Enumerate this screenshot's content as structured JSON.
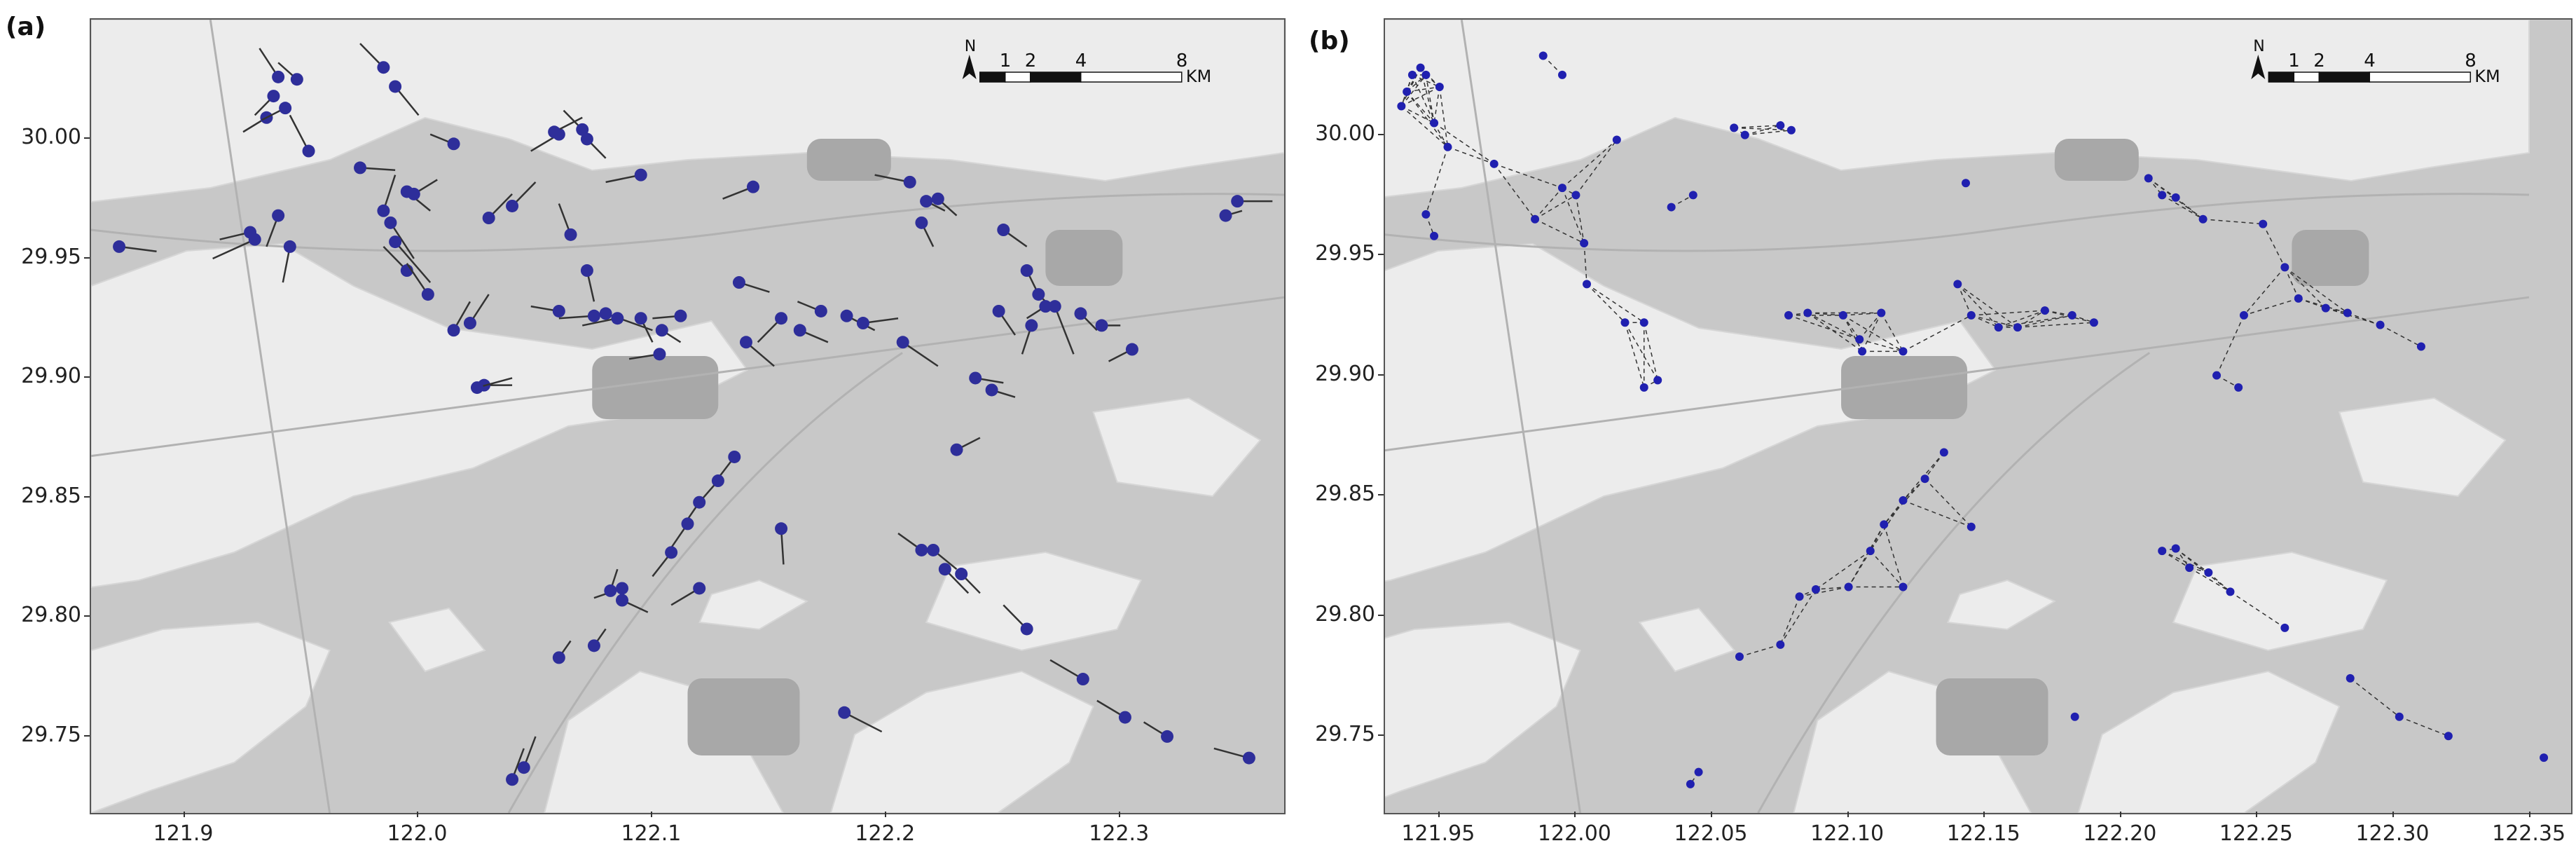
{
  "panels": [
    {
      "letter": "(a)",
      "x_ticks": [
        "121.9",
        "122.0",
        "122.1",
        "122.2",
        "122.3"
      ],
      "y_ticks": [
        "30.00",
        "29.95",
        "29.90",
        "29.85",
        "29.80",
        "29.75"
      ],
      "lon_range": [
        121.86,
        122.37
      ],
      "lat_range": [
        29.718,
        30.05
      ],
      "x_tick_values": [
        121.9,
        122.0,
        122.1,
        122.2,
        122.3
      ],
      "y_tick_values": [
        30.0,
        29.95,
        29.9,
        29.85,
        29.8,
        29.75
      ],
      "scalebar": {
        "north": "N",
        "labels": [
          "1",
          "2",
          "4",
          "8"
        ],
        "unit": "KM"
      }
    },
    {
      "letter": "(b)",
      "x_ticks": [
        "121.95",
        "122.00",
        "122.05",
        "122.10",
        "122.15",
        "122.20",
        "122.25",
        "122.30",
        "122.35"
      ],
      "y_ticks": [
        "30.00",
        "29.95",
        "29.90",
        "29.85",
        "29.80",
        "29.75"
      ],
      "lon_range": [
        121.93,
        122.365
      ],
      "lat_range": [
        29.718,
        30.048
      ],
      "x_tick_values": [
        121.95,
        122.0,
        122.05,
        122.1,
        122.15,
        122.2,
        122.25,
        122.3,
        122.35
      ],
      "y_tick_values": [
        30.0,
        29.95,
        29.9,
        29.85,
        29.8,
        29.75
      ],
      "scalebar": {
        "north": "N",
        "labels": [
          "1",
          "2",
          "4",
          "8"
        ],
        "unit": "KM"
      }
    }
  ],
  "colors": {
    "water": "#c8c8c8",
    "land": "#ececec",
    "urban": "#a8a8a8",
    "ship_point": "#2e2e9a",
    "track": "#333333"
  },
  "chart_data": [
    {
      "type": "scatter",
      "title": "(a)",
      "xlabel": "",
      "ylabel": "",
      "xlim": [
        121.86,
        122.37
      ],
      "ylim": [
        29.718,
        30.05
      ],
      "points": [
        [
          121.872,
          29.955,
          121.888,
          29.953
        ],
        [
          121.928,
          29.961,
          121.915,
          29.958
        ],
        [
          121.93,
          29.958,
          121.912,
          29.95
        ],
        [
          121.94,
          29.968,
          121.935,
          29.955
        ],
        [
          121.945,
          29.955,
          121.942,
          29.94
        ],
        [
          121.94,
          30.026,
          121.932,
          30.038
        ],
        [
          121.948,
          30.025,
          121.94,
          30.032
        ],
        [
          121.938,
          30.018,
          121.93,
          30.01
        ],
        [
          121.935,
          30.009,
          121.925,
          30.003
        ],
        [
          121.943,
          30.013,
          121.933,
          30.008
        ],
        [
          121.953,
          29.995,
          121.945,
          30.01
        ],
        [
          121.975,
          29.988,
          121.99,
          29.987
        ],
        [
          121.988,
          29.965,
          121.998,
          29.95
        ],
        [
          121.985,
          29.97,
          121.99,
          29.985
        ],
        [
          121.995,
          29.978,
          122.005,
          29.97
        ],
        [
          121.998,
          29.977,
          122.008,
          29.983
        ],
        [
          121.99,
          29.957,
          122.005,
          29.94
        ],
        [
          121.995,
          29.945,
          121.985,
          29.955
        ],
        [
          122.004,
          29.935,
          121.995,
          29.948
        ],
        [
          121.985,
          30.03,
          121.975,
          30.04
        ],
        [
          121.99,
          30.022,
          122.0,
          30.01
        ],
        [
          122.015,
          29.998,
          122.005,
          30.002
        ],
        [
          122.015,
          29.92,
          122.022,
          29.932
        ],
        [
          122.022,
          29.923,
          122.03,
          29.935
        ],
        [
          122.028,
          29.897,
          122.04,
          29.897
        ],
        [
          122.025,
          29.896,
          122.04,
          29.9
        ],
        [
          122.03,
          29.967,
          122.04,
          29.977
        ],
        [
          122.04,
          29.972,
          122.05,
          29.982
        ],
        [
          122.06,
          30.002,
          122.048,
          29.995
        ],
        [
          122.058,
          30.003,
          122.07,
          30.009
        ],
        [
          122.07,
          30.004,
          122.062,
          30.012
        ],
        [
          122.072,
          30.0,
          122.08,
          29.992
        ],
        [
          122.065,
          29.96,
          122.06,
          29.973
        ],
        [
          122.072,
          29.945,
          122.075,
          29.932
        ],
        [
          122.06,
          29.928,
          122.048,
          29.93
        ],
        [
          122.075,
          29.926,
          122.06,
          29.925
        ],
        [
          122.08,
          29.927,
          122.1,
          29.92
        ],
        [
          122.085,
          29.925,
          122.07,
          29.922
        ],
        [
          122.095,
          29.925,
          122.1,
          29.915
        ],
        [
          122.104,
          29.92,
          122.112,
          29.915
        ],
        [
          122.112,
          29.926,
          122.1,
          29.925
        ],
        [
          122.103,
          29.91,
          122.09,
          29.908
        ],
        [
          122.095,
          29.985,
          122.08,
          29.982
        ],
        [
          122.143,
          29.98,
          122.13,
          29.975
        ],
        [
          122.137,
          29.94,
          122.15,
          29.936
        ],
        [
          122.14,
          29.915,
          122.152,
          29.905
        ],
        [
          122.155,
          29.925,
          122.145,
          29.915
        ],
        [
          122.163,
          29.92,
          122.175,
          29.915
        ],
        [
          122.172,
          29.928,
          122.162,
          29.932
        ],
        [
          122.183,
          29.926,
          122.195,
          29.92
        ],
        [
          122.19,
          29.923,
          122.205,
          29.925
        ],
        [
          122.207,
          29.915,
          122.222,
          29.905
        ],
        [
          122.21,
          29.982,
          122.195,
          29.985
        ],
        [
          122.217,
          29.974,
          122.225,
          29.97
        ],
        [
          122.222,
          29.975,
          122.23,
          29.968
        ],
        [
          122.215,
          29.965,
          122.22,
          29.955
        ],
        [
          122.25,
          29.962,
          122.26,
          29.955
        ],
        [
          122.26,
          29.945,
          122.265,
          29.935
        ],
        [
          122.265,
          29.935,
          122.27,
          29.93
        ],
        [
          122.268,
          29.93,
          122.26,
          29.925
        ],
        [
          122.248,
          29.928,
          122.255,
          29.918
        ],
        [
          122.272,
          29.93,
          122.28,
          29.91
        ],
        [
          122.283,
          29.927,
          122.29,
          29.92
        ],
        [
          122.292,
          29.922,
          122.3,
          29.922
        ],
        [
          122.305,
          29.912,
          122.295,
          29.907
        ],
        [
          122.262,
          29.922,
          122.258,
          29.91
        ],
        [
          122.238,
          29.9,
          122.25,
          29.898
        ],
        [
          122.245,
          29.895,
          122.255,
          29.892
        ],
        [
          122.23,
          29.87,
          122.24,
          29.875
        ],
        [
          122.35,
          29.974,
          122.365,
          29.974
        ],
        [
          122.345,
          29.968,
          122.352,
          29.97
        ],
        [
          122.155,
          29.837,
          122.156,
          29.822
        ],
        [
          122.135,
          29.867,
          122.128,
          29.858
        ],
        [
          122.128,
          29.857,
          122.12,
          29.848
        ],
        [
          122.12,
          29.848,
          122.113,
          29.838
        ],
        [
          122.115,
          29.839,
          122.108,
          29.829
        ],
        [
          122.108,
          29.827,
          122.1,
          29.817
        ],
        [
          122.087,
          29.812,
          122.075,
          29.808
        ],
        [
          122.082,
          29.811,
          122.085,
          29.82
        ],
        [
          122.087,
          29.807,
          122.098,
          29.802
        ],
        [
          122.12,
          29.812,
          122.108,
          29.805
        ],
        [
          122.06,
          29.783,
          122.065,
          29.79
        ],
        [
          122.075,
          29.788,
          122.08,
          29.795
        ],
        [
          122.045,
          29.737,
          122.05,
          29.75
        ],
        [
          122.04,
          29.732,
          122.045,
          29.745
        ],
        [
          122.182,
          29.76,
          122.198,
          29.752
        ],
        [
          122.215,
          29.828,
          122.205,
          29.835
        ],
        [
          122.22,
          29.828,
          122.23,
          29.82
        ],
        [
          122.225,
          29.82,
          122.235,
          29.81
        ],
        [
          122.232,
          29.818,
          122.24,
          29.81
        ],
        [
          122.26,
          29.795,
          122.25,
          29.805
        ],
        [
          122.284,
          29.774,
          122.27,
          29.782
        ],
        [
          122.302,
          29.758,
          122.29,
          29.765
        ],
        [
          122.32,
          29.75,
          122.31,
          29.756
        ],
        [
          122.355,
          29.741,
          122.34,
          29.745
        ]
      ]
    },
    {
      "type": "scatter",
      "title": "(b)",
      "xlabel": "",
      "ylabel": "",
      "xlim": [
        121.93,
        122.365
      ],
      "ylim": [
        29.718,
        30.048
      ],
      "points": [
        [
          121.94,
          30.025
        ],
        [
          121.943,
          30.028
        ],
        [
          121.938,
          30.018
        ],
        [
          121.936,
          30.012
        ],
        [
          121.945,
          30.025
        ],
        [
          121.95,
          30.02
        ],
        [
          121.948,
          30.005
        ],
        [
          121.953,
          29.995
        ],
        [
          121.945,
          29.967
        ],
        [
          121.948,
          29.958
        ],
        [
          121.97,
          29.988
        ],
        [
          121.988,
          30.033
        ],
        [
          121.995,
          30.025
        ],
        [
          121.985,
          29.965
        ],
        [
          121.995,
          29.978
        ],
        [
          122.0,
          29.975
        ],
        [
          122.003,
          29.955
        ],
        [
          122.004,
          29.938
        ],
        [
          122.015,
          29.998
        ],
        [
          122.018,
          29.922
        ],
        [
          122.025,
          29.922
        ],
        [
          122.035,
          29.97
        ],
        [
          122.043,
          29.975
        ],
        [
          122.025,
          29.895
        ],
        [
          122.03,
          29.898
        ],
        [
          122.058,
          30.003
        ],
        [
          122.062,
          30.0
        ],
        [
          122.075,
          30.004
        ],
        [
          122.079,
          30.002
        ],
        [
          122.078,
          29.925
        ],
        [
          122.085,
          29.926
        ],
        [
          122.098,
          29.925
        ],
        [
          122.104,
          29.915
        ],
        [
          122.112,
          29.926
        ],
        [
          122.105,
          29.91
        ],
        [
          122.12,
          29.91
        ],
        [
          122.143,
          29.98
        ],
        [
          122.14,
          29.938
        ],
        [
          122.145,
          29.925
        ],
        [
          122.155,
          29.92
        ],
        [
          122.162,
          29.92
        ],
        [
          122.172,
          29.927
        ],
        [
          122.182,
          29.925
        ],
        [
          122.19,
          29.922
        ],
        [
          122.21,
          29.982
        ],
        [
          122.215,
          29.975
        ],
        [
          122.22,
          29.974
        ],
        [
          122.23,
          29.965
        ],
        [
          122.252,
          29.963
        ],
        [
          122.26,
          29.945
        ],
        [
          122.265,
          29.932
        ],
        [
          122.275,
          29.928
        ],
        [
          122.283,
          29.926
        ],
        [
          122.295,
          29.921
        ],
        [
          122.31,
          29.912
        ],
        [
          122.245,
          29.925
        ],
        [
          122.235,
          29.9
        ],
        [
          122.243,
          29.895
        ],
        [
          122.135,
          29.868
        ],
        [
          122.128,
          29.857
        ],
        [
          122.12,
          29.848
        ],
        [
          122.113,
          29.838
        ],
        [
          122.108,
          29.827
        ],
        [
          122.1,
          29.812
        ],
        [
          122.088,
          29.811
        ],
        [
          122.082,
          29.808
        ],
        [
          122.12,
          29.812
        ],
        [
          122.145,
          29.837
        ],
        [
          122.06,
          29.783
        ],
        [
          122.075,
          29.788
        ],
        [
          122.045,
          29.735
        ],
        [
          122.042,
          29.73
        ],
        [
          122.183,
          29.758
        ],
        [
          122.215,
          29.827
        ],
        [
          122.22,
          29.828
        ],
        [
          122.225,
          29.82
        ],
        [
          122.232,
          29.818
        ],
        [
          122.24,
          29.81
        ],
        [
          122.26,
          29.795
        ],
        [
          122.284,
          29.774
        ],
        [
          122.302,
          29.758
        ],
        [
          122.32,
          29.75
        ],
        [
          122.355,
          29.741
        ]
      ]
    }
  ]
}
